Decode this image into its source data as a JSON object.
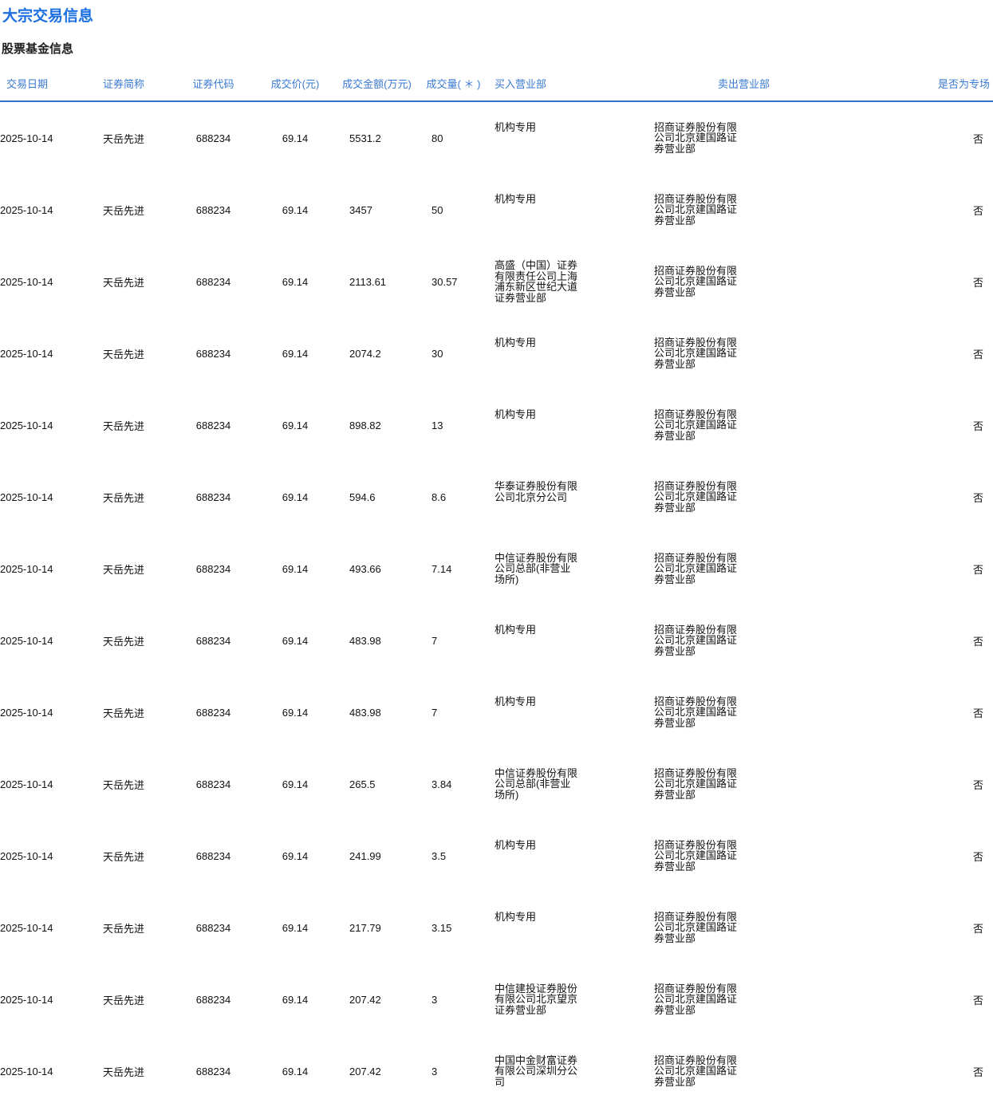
{
  "page": {
    "title": "大宗交易信息",
    "subtitle": "股票基金信息"
  },
  "colors": {
    "title_blue": "#1b6fe0",
    "header_blue": "#3a79d2",
    "divider_blue": "#2f72d0",
    "body_text": "#111111"
  },
  "table": {
    "headers": [
      "交易日期",
      "证券简称",
      "证券代码",
      "成交价(元)",
      "成交金额(万元)",
      "成交量( ＊ )",
      "买入营业部",
      "卖出营业部",
      "是否为专场"
    ],
    "rows": [
      {
        "date": "2025-10-14",
        "name": "天岳先进",
        "code": "688234",
        "price": "69.14",
        "amount": "5531.2",
        "volume": "80",
        "buyer": "机构专用",
        "seller": "招商证券股份有限公司北京建国路证券营业部",
        "special": "否"
      },
      {
        "date": "2025-10-14",
        "name": "天岳先进",
        "code": "688234",
        "price": "69.14",
        "amount": "3457",
        "volume": "50",
        "buyer": "机构专用",
        "seller": "招商证券股份有限公司北京建国路证券营业部",
        "special": "否"
      },
      {
        "date": "2025-10-14",
        "name": "天岳先进",
        "code": "688234",
        "price": "69.14",
        "amount": "2113.61",
        "volume": "30.57",
        "buyer": "高盛（中国）证券有限责任公司上海浦东新区世纪大道证券营业部",
        "seller": "招商证券股份有限公司北京建国路证券营业部",
        "special": "否"
      },
      {
        "date": "2025-10-14",
        "name": "天岳先进",
        "code": "688234",
        "price": "69.14",
        "amount": "2074.2",
        "volume": "30",
        "buyer": "机构专用",
        "seller": "招商证券股份有限公司北京建国路证券营业部",
        "special": "否"
      },
      {
        "date": "2025-10-14",
        "name": "天岳先进",
        "code": "688234",
        "price": "69.14",
        "amount": "898.82",
        "volume": "13",
        "buyer": "机构专用",
        "seller": "招商证券股份有限公司北京建国路证券营业部",
        "special": "否"
      },
      {
        "date": "2025-10-14",
        "name": "天岳先进",
        "code": "688234",
        "price": "69.14",
        "amount": "594.6",
        "volume": "8.6",
        "buyer": "华泰证券股份有限公司北京分公司",
        "seller": "招商证券股份有限公司北京建国路证券营业部",
        "special": "否"
      },
      {
        "date": "2025-10-14",
        "name": "天岳先进",
        "code": "688234",
        "price": "69.14",
        "amount": "493.66",
        "volume": "7.14",
        "buyer": "中信证券股份有限公司总部(非营业场所)",
        "seller": "招商证券股份有限公司北京建国路证券营业部",
        "special": "否"
      },
      {
        "date": "2025-10-14",
        "name": "天岳先进",
        "code": "688234",
        "price": "69.14",
        "amount": "483.98",
        "volume": "7",
        "buyer": "机构专用",
        "seller": "招商证券股份有限公司北京建国路证券营业部",
        "special": "否"
      },
      {
        "date": "2025-10-14",
        "name": "天岳先进",
        "code": "688234",
        "price": "69.14",
        "amount": "483.98",
        "volume": "7",
        "buyer": "机构专用",
        "seller": "招商证券股份有限公司北京建国路证券营业部",
        "special": "否"
      },
      {
        "date": "2025-10-14",
        "name": "天岳先进",
        "code": "688234",
        "price": "69.14",
        "amount": "265.5",
        "volume": "3.84",
        "buyer": "中信证券股份有限公司总部(非营业场所)",
        "seller": "招商证券股份有限公司北京建国路证券营业部",
        "special": "否"
      },
      {
        "date": "2025-10-14",
        "name": "天岳先进",
        "code": "688234",
        "price": "69.14",
        "amount": "241.99",
        "volume": "3.5",
        "buyer": "机构专用",
        "seller": "招商证券股份有限公司北京建国路证券营业部",
        "special": "否"
      },
      {
        "date": "2025-10-14",
        "name": "天岳先进",
        "code": "688234",
        "price": "69.14",
        "amount": "217.79",
        "volume": "3.15",
        "buyer": "机构专用",
        "seller": "招商证券股份有限公司北京建国路证券营业部",
        "special": "否"
      },
      {
        "date": "2025-10-14",
        "name": "天岳先进",
        "code": "688234",
        "price": "69.14",
        "amount": "207.42",
        "volume": "3",
        "buyer": "中信建投证券股份有限公司北京望京证券营业部",
        "seller": "招商证券股份有限公司北京建国路证券营业部",
        "special": "否"
      },
      {
        "date": "2025-10-14",
        "name": "天岳先进",
        "code": "688234",
        "price": "69.14",
        "amount": "207.42",
        "volume": "3",
        "buyer": "中国中金财富证券有限公司深圳分公司",
        "seller": "招商证券股份有限公司北京建国路证券营业部",
        "special": "否"
      }
    ]
  }
}
